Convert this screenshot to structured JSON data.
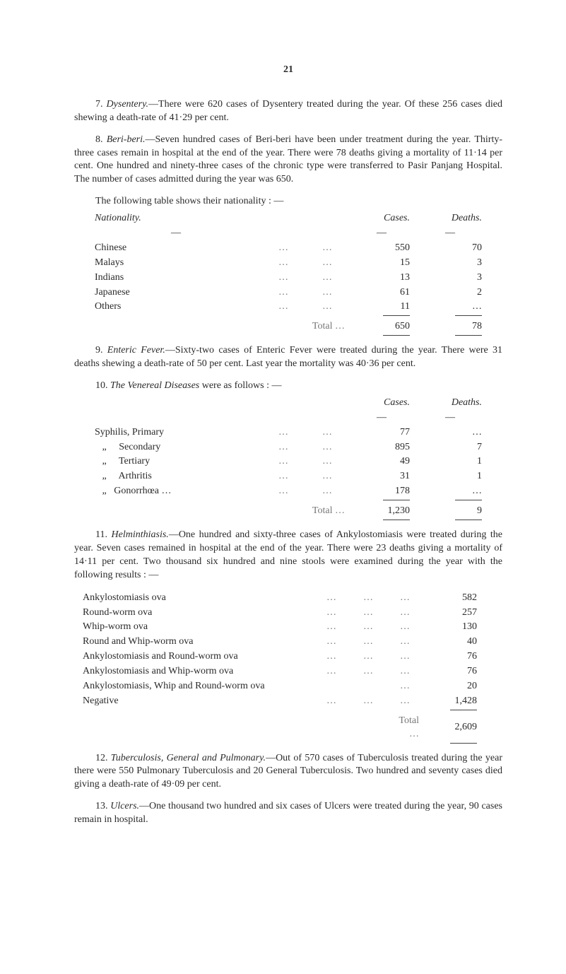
{
  "page_number": "21",
  "p7": {
    "lead": "7.",
    "title": "Dysentery.",
    "text": "—There were 620 cases of Dysentery treated during the year. Of these 256 cases died shewing a death-rate of 41·29 per cent."
  },
  "p8": {
    "lead": "8.",
    "title": "Beri-beri.",
    "text": "—Seven hundred cases of Beri-beri have been under treatment during the year. Thirty-three cases remain in hospital at the end of the year. There were 78 deaths giving a mortality of 11·14 per cent. One hundred and ninety-three cases of the chronic type were transferred to Pasir Panjang Hospital. The number of cases admitted during the year was 650."
  },
  "following1": "The following table shows their nationality : —",
  "tableA": {
    "headers": {
      "nat": "Nationality.",
      "cases": "Cases.",
      "deaths": "Deaths."
    },
    "rows": [
      {
        "label": "Chinese",
        "cases": "550",
        "deaths": "70"
      },
      {
        "label": "Malays",
        "cases": "15",
        "deaths": "3"
      },
      {
        "label": "Indians",
        "cases": "13",
        "deaths": "3"
      },
      {
        "label": "Japanese",
        "cases": "61",
        "deaths": "2"
      },
      {
        "label": "Others",
        "cases": "11",
        "deaths": "…"
      }
    ],
    "total_label": "Total …",
    "total_cases": "650",
    "total_deaths": "78"
  },
  "p9": {
    "lead": "9.",
    "title": "Enteric Fever.",
    "text": "—Sixty-two cases of Enteric Fever were treated during the year. There were 31 deaths shewing a death-rate of 50 per cent. Last year the mortality was 40·36 per cent."
  },
  "p10": {
    "lead": "10.",
    "title": "The Venereal Diseases",
    "tail": " were as follows : —"
  },
  "tableB": {
    "headers": {
      "cases": "Cases.",
      "deaths": "Deaths."
    },
    "rows": [
      {
        "label": "Syphilis, Primary",
        "cases": "77",
        "deaths": "…"
      },
      {
        "label": "   „     Secondary",
        "cases": "895",
        "deaths": "7"
      },
      {
        "label": "   „     Tertiary",
        "cases": "49",
        "deaths": "1"
      },
      {
        "label": "   „     Arthritis",
        "cases": "31",
        "deaths": "1"
      },
      {
        "label": "   „   Gonorrhœa …",
        "cases": "178",
        "deaths": "…"
      }
    ],
    "total_label": "Total …",
    "total_cases": "1,230",
    "total_deaths": "9"
  },
  "p11": {
    "lead": "11.",
    "title": "Helminthiasis.",
    "text": "—One hundred and sixty-three cases of Ankylostomiasis were treated during the year. Seven cases remained in hospital at the end of the year. There were 23 deaths giving a mortality of 14·11 per cent. Two thousand six hundred and nine stools were examined during the year with the following results : —"
  },
  "tableC": {
    "rows": [
      {
        "label": "Ankylostomiasis ova",
        "val": "582"
      },
      {
        "label": "Round-worm ova",
        "val": "257"
      },
      {
        "label": "Whip-worm ova",
        "val": "130"
      },
      {
        "label": "Round and Whip-worm ova",
        "val": "40"
      },
      {
        "label": "Ankylostomiasis and Round-worm ova",
        "val": "76"
      },
      {
        "label": "Ankylostomiasis and Whip-worm ova",
        "val": "76"
      },
      {
        "label": "Ankylostomiasis, Whip and Round-worm ova",
        "val": "20"
      },
      {
        "label": "Negative",
        "val": "1,428"
      }
    ],
    "total_label": "Total …",
    "total_val": "2,609"
  },
  "p12": {
    "lead": "12.",
    "title": "Tuberculosis, General and Pulmonary.",
    "text": "—Out of 570 cases of Tuberculosis treated during the year there were 550 Pulmonary Tuberculosis and 20 General Tuberculosis. Two hundred and seventy cases died giving a death-rate of 49·09 per cent."
  },
  "p13": {
    "lead": "13.",
    "title": "Ulcers.",
    "text": "—One thousand two hundred and six cases of Ulcers were treated during the year, 90 cases remain in hospital."
  },
  "dots": "…",
  "dash": "—"
}
